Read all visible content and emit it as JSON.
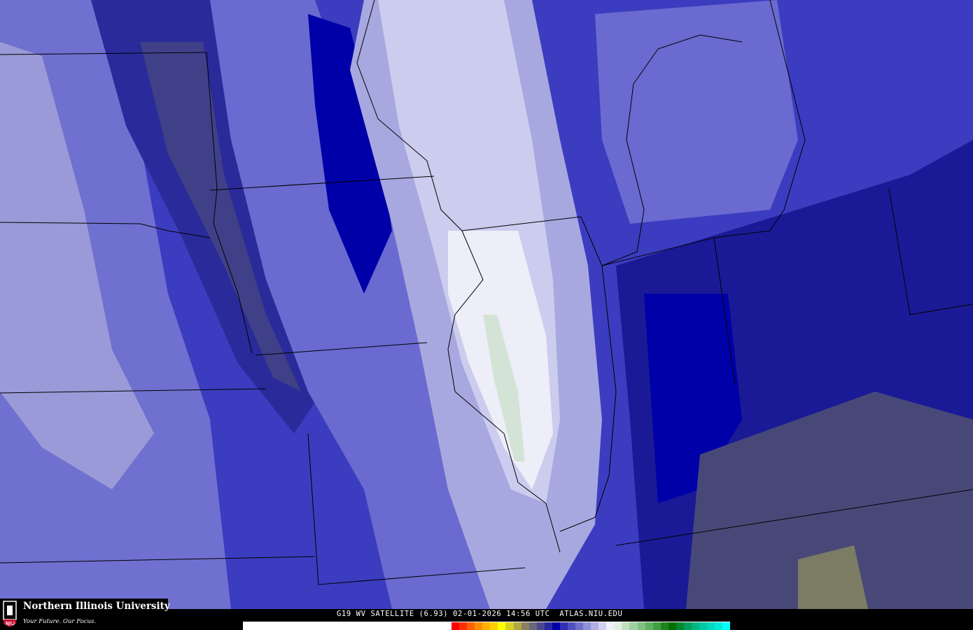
{
  "caption": "G19 WV SATELLITE (6.93) 02-01-2026 14:56 UTC  ATLAS.NIU.EDU",
  "logo": {
    "name": "Northern Illinois University",
    "tagline": "Your Future. Our Focus.",
    "seal_text": "NIU",
    "accent": "#c8102e"
  },
  "colorbar": {
    "colors": [
      "#ff0000",
      "#ff3000",
      "#ff6000",
      "#ff8c00",
      "#ffb000",
      "#ffd000",
      "#ffff00",
      "#d8d020",
      "#b0a840",
      "#888060",
      "#686878",
      "#484890",
      "#2828a0",
      "#0000a8",
      "#3030b8",
      "#5050c0",
      "#7070c8",
      "#9090d8",
      "#b0b0e0",
      "#d0d0f0",
      "#f0f0f8",
      "#e0f0e0",
      "#c0e0c0",
      "#a0d0a0",
      "#80c080",
      "#60b060",
      "#40a040",
      "#208020",
      "#007000",
      "#008830",
      "#00a060",
      "#00b880",
      "#00c8a0",
      "#00d8c0",
      "#00e8d8",
      "#00ffff"
    ]
  },
  "map": {
    "colors": {
      "deep": "#0000a8",
      "dark": "#1a1a96",
      "mid": "#3c3cc0",
      "light": "#6a6ad0",
      "pale": "#a8a8e0",
      "paler": "#ccccee",
      "white": "#eeeef8",
      "dry": "#484878",
      "olive": "#8a8a60"
    }
  }
}
